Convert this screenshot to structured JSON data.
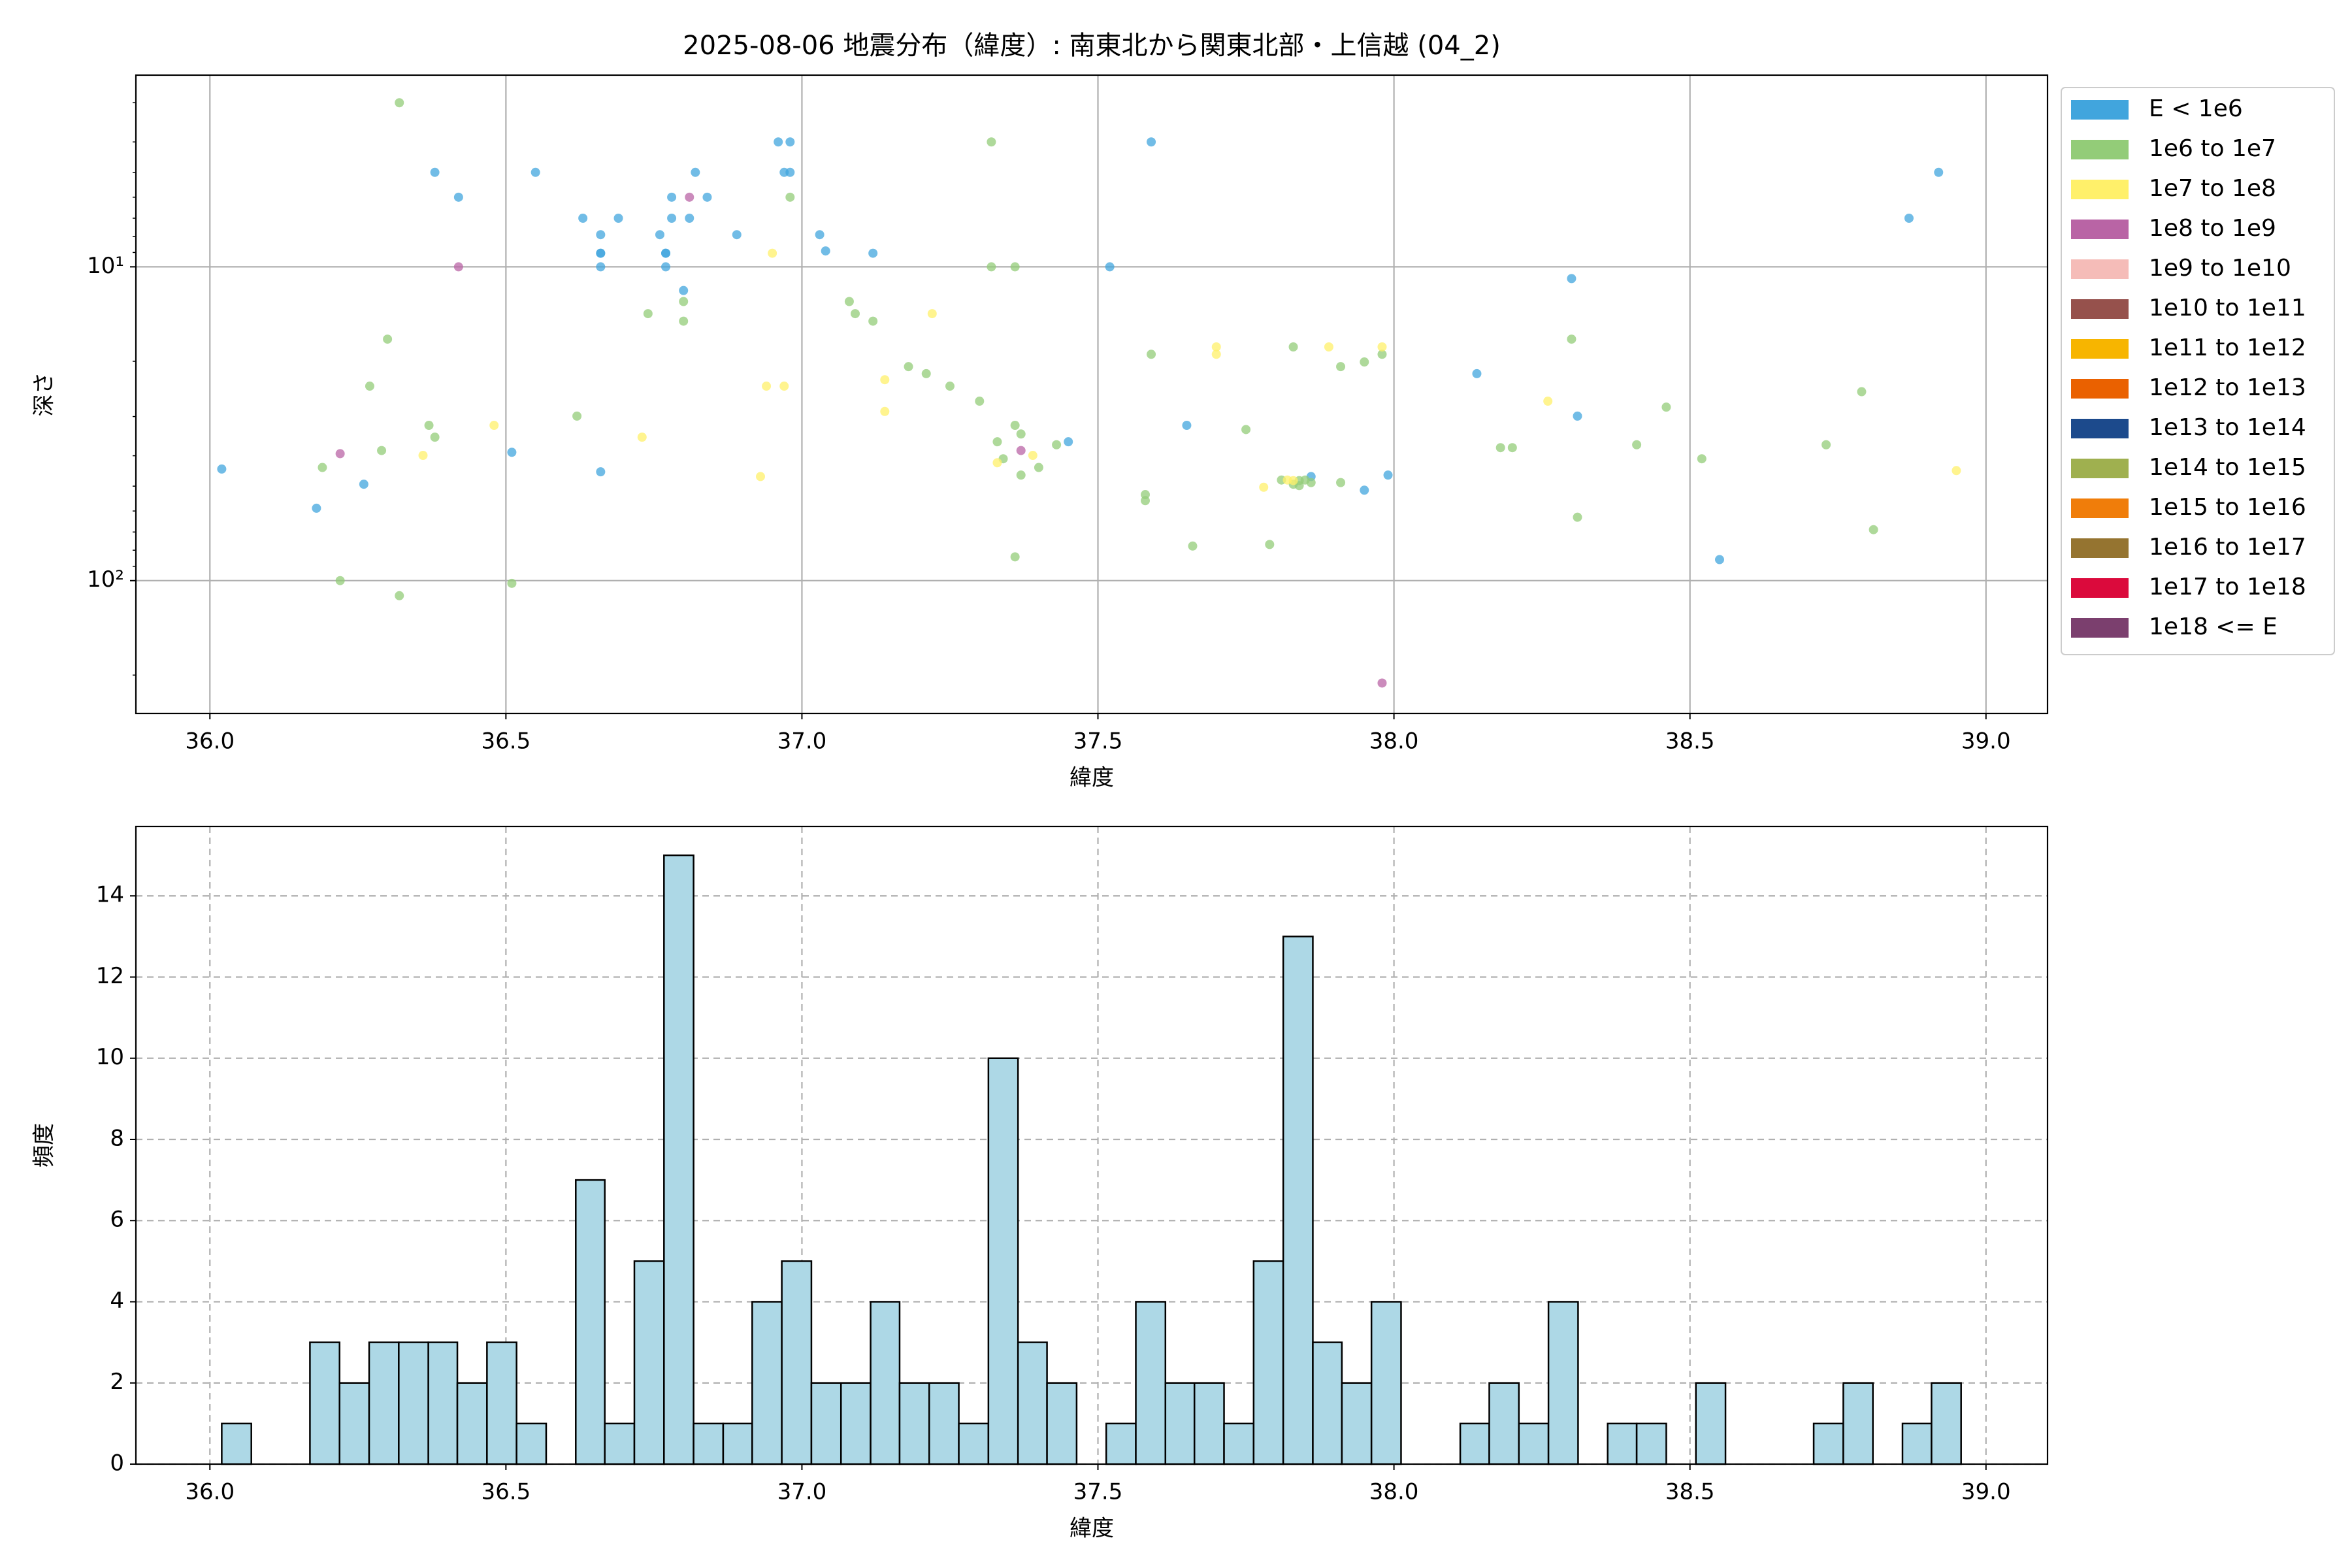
{
  "chart_data": [
    {
      "type": "scatter",
      "title": "2025-08-06 地震分布（緯度）: 南東北から関東北部・上信越 (04_2)",
      "xlabel": "緯度",
      "ylabel": "深さ",
      "xlim": [
        35.875,
        39.104
      ],
      "ylim": [
        265,
        2.45
      ],
      "yscale": "log",
      "xticks": [
        {
          "value": 36,
          "label": "36.0"
        },
        36.5,
        {
          "value": 37,
          "label": "37.0"
        },
        37.5,
        {
          "value": 38,
          "label": "38.0"
        },
        38.5,
        {
          "value": 39,
          "label": "39.0"
        }
      ],
      "yticks": [
        {
          "value": 10,
          "label": "10¹"
        },
        {
          "value": 100,
          "label": "10²"
        }
      ],
      "yminorticks": [
        3,
        4,
        5,
        6,
        7,
        8,
        9,
        20,
        30,
        40,
        50,
        60,
        70,
        80,
        90,
        200
      ],
      "grid": true,
      "grid_linestyle": "-",
      "legend": "outside-right",
      "series": [
        {
          "name": "E < 1e6",
          "color": "#41a5dd",
          "x": [
            36.02,
            36.18,
            36.26,
            36.38,
            36.42,
            36.51,
            36.55,
            36.63,
            36.66,
            36.66,
            36.66,
            36.66,
            36.66,
            36.69,
            36.76,
            36.77,
            36.77,
            36.77,
            36.78,
            36.78,
            36.8,
            36.81,
            36.82,
            36.84,
            36.89,
            36.96,
            36.98,
            36.97,
            36.98,
            37.03,
            37.04,
            37.12,
            37.45,
            37.52,
            37.59,
            37.65,
            37.86,
            37.95,
            37.99,
            38.14,
            38.3,
            38.31,
            38.55,
            38.87,
            38.92
          ],
          "values": [
            44.1,
            58.8,
            49.3,
            5,
            6,
            39,
            5,
            7,
            7.9,
            9.05,
            9.05,
            10,
            45,
            7,
            7.9,
            9.05,
            10,
            9.05,
            6,
            7,
            11.9,
            7,
            5,
            6,
            7.9,
            4,
            4,
            5,
            5,
            7.9,
            8.9,
            9.05,
            36.1,
            10,
            4,
            32,
            46.6,
            51.5,
            46.1,
            21.9,
            10.9,
            29.9,
            85.7,
            7,
            5
          ]
        },
        {
          "name": "1e6 to 1e7",
          "color": "#93cc78",
          "x": [
            36.32,
            36.19,
            36.22,
            36.3,
            36.27,
            36.29,
            36.37,
            36.38,
            36.32,
            36.51,
            36.62,
            36.74,
            36.8,
            36.8,
            36.98,
            37.08,
            37.09,
            37.12,
            37.18,
            37.21,
            37.25,
            37.3,
            37.32,
            37.32,
            37.36,
            37.33,
            37.34,
            37.36,
            37.37,
            37.37,
            37.36,
            37.4,
            37.43,
            37.58,
            37.58,
            37.59,
            37.66,
            37.75,
            37.79,
            37.81,
            37.83,
            37.83,
            37.84,
            37.85,
            37.86,
            37.84,
            37.91,
            37.95,
            37.91,
            37.98,
            38.18,
            38.2,
            38.3,
            38.31,
            38.41,
            38.46,
            38.52,
            38.73,
            38.79,
            38.81
          ],
          "values": [
            3,
            43.6,
            100,
            17,
            24,
            38.5,
            32,
            34.9,
            111.7,
            102,
            29.9,
            14.1,
            12.9,
            14.9,
            6,
            12.9,
            14.1,
            14.9,
            20.8,
            21.9,
            24,
            26.8,
            4,
            10,
            10,
            36.1,
            40.9,
            32,
            34.1,
            46.1,
            84,
            43.6,
            36.9,
            53.2,
            55.6,
            19,
            77.6,
            33,
            76.7,
            47.8,
            18,
            49.3,
            48,
            47.8,
            48.7,
            49.8,
            20.8,
            20.1,
            48.7,
            19,
            37.7,
            37.7,
            17,
            62.8,
            36.9,
            28,
            40.9,
            36.9,
            25,
            68.8
          ]
        },
        {
          "name": "1e7 to 1e8",
          "color": "#fff06a",
          "x": [
            36.36,
            36.48,
            36.73,
            36.93,
            36.94,
            36.95,
            36.97,
            37.14,
            37.14,
            37.22,
            37.33,
            37.39,
            37.7,
            37.7,
            37.78,
            37.82,
            37.83,
            37.89,
            37.98,
            38.26,
            38.95
          ],
          "values": [
            39.9,
            32,
            34.9,
            46.6,
            24,
            9.05,
            24,
            22.9,
            28.9,
            14.1,
            42.1,
            39.9,
            18,
            19,
            50.4,
            47.8,
            48,
            18,
            18,
            26.8,
            44.6
          ]
        },
        {
          "name": "1e8 to 1e9",
          "color": "#b964a5",
          "x": [
            36.22,
            36.42,
            36.81,
            37.37,
            37.98
          ],
          "values": [
            39.4,
            10,
            6,
            38.5,
            212
          ]
        },
        {
          "name": "1e9 to 1e10",
          "color": "#f5bcb8",
          "x": [],
          "values": []
        },
        {
          "name": "1e10 to 1e11",
          "color": "#96514c",
          "x": [],
          "values": []
        },
        {
          "name": "1e11 to 1e12",
          "color": "#f7b500",
          "x": [],
          "values": []
        },
        {
          "name": "1e12 to 1e13",
          "color": "#ea6100",
          "x": [],
          "values": []
        },
        {
          "name": "1e13 to 1e14",
          "color": "#1c4a8c",
          "x": [],
          "values": []
        },
        {
          "name": "1e14 to 1e15",
          "color": "#9fb04f",
          "x": [],
          "values": []
        },
        {
          "name": "1e15 to 1e16",
          "color": "#f07d0a",
          "x": [],
          "values": []
        },
        {
          "name": "1e16 to 1e17",
          "color": "#957430",
          "x": [],
          "values": []
        },
        {
          "name": "1e17 to 1e18",
          "color": "#db0a3c",
          "x": [],
          "values": []
        },
        {
          "name": "1e18 <= E",
          "color": "#7b3f6e",
          "x": [],
          "values": []
        }
      ]
    },
    {
      "type": "histogram",
      "xlabel": "緯度",
      "ylabel": "頻度",
      "xlim": [
        35.875,
        39.104
      ],
      "ylim": [
        0,
        15.71
      ],
      "xticks": [
        {
          "value": 36,
          "label": "36.0"
        },
        36.5,
        {
          "value": 37,
          "label": "37.0"
        },
        37.5,
        {
          "value": 38,
          "label": "38.0"
        },
        38.5,
        {
          "value": 39,
          "label": "39.0"
        }
      ],
      "yticks": [
        0,
        2,
        4,
        6,
        8,
        10,
        12,
        14
      ],
      "grid": true,
      "grid_linestyle": "--",
      "color": "#add8e6",
      "edge_color": "#000000",
      "bins": [
        36.02,
        36.07,
        36.12,
        36.169,
        36.219,
        36.269,
        36.319,
        36.369,
        36.418,
        36.468,
        36.518,
        36.568,
        36.618,
        36.667,
        36.717,
        36.767,
        36.817,
        36.867,
        36.916,
        36.966,
        37.016,
        37.066,
        37.116,
        37.165,
        37.215,
        37.265,
        37.315,
        37.365,
        37.414,
        37.464,
        37.514,
        37.564,
        37.614,
        37.663,
        37.713,
        37.763,
        37.813,
        37.863,
        37.912,
        37.962,
        38.012,
        38.062,
        38.112,
        38.161,
        38.211,
        38.261,
        38.311,
        38.361,
        38.41,
        38.46,
        38.51,
        38.56,
        38.61,
        38.659,
        38.709,
        38.759,
        38.809,
        38.859,
        38.908,
        38.958
      ],
      "values": [
        1,
        0,
        0,
        3,
        2,
        3,
        3,
        3,
        2,
        3,
        1,
        0,
        7,
        1,
        5,
        15,
        1,
        1,
        4,
        5,
        2,
        2,
        4,
        2,
        2,
        1,
        10,
        3,
        2,
        0,
        1,
        4,
        2,
        2,
        1,
        5,
        13,
        3,
        2,
        4,
        0,
        0,
        1,
        2,
        1,
        4,
        0,
        1,
        1,
        0,
        2,
        0,
        0,
        0,
        1,
        2,
        0,
        1,
        2
      ]
    }
  ]
}
